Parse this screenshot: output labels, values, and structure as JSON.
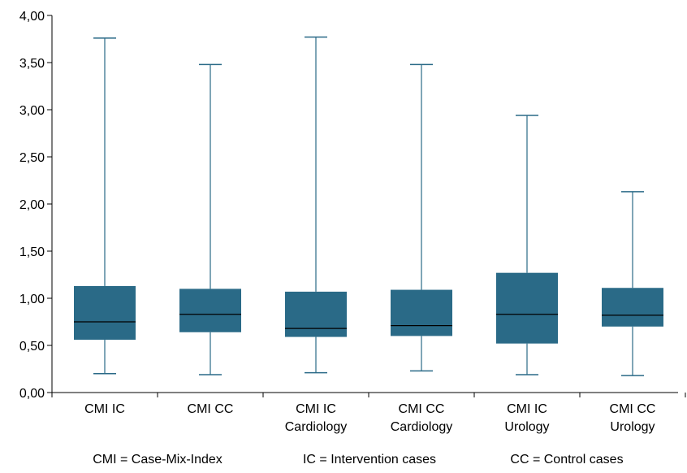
{
  "chart_data": {
    "type": "boxplot",
    "title": "",
    "xlabel": "",
    "ylabel": "",
    "ylim": [
      0,
      4
    ],
    "yticks": [
      "0,00",
      "0,50",
      "1,00",
      "1,50",
      "2,00",
      "2,50",
      "3,00",
      "3,50",
      "4,00"
    ],
    "ytick_values": [
      0,
      0.5,
      1,
      1.5,
      2,
      2.5,
      3,
      3.5,
      4
    ],
    "grid": false,
    "box_color": "#2a6a87",
    "categories": [
      {
        "line1": "CMI IC",
        "line2": ""
      },
      {
        "line1": "CMI CC",
        "line2": ""
      },
      {
        "line1": "CMI IC",
        "line2": "Cardiology"
      },
      {
        "line1": "CMI CC",
        "line2": "Cardiology"
      },
      {
        "line1": "CMI IC",
        "line2": "Urology"
      },
      {
        "line1": "CMI CC",
        "line2": "Urology"
      }
    ],
    "boxes": [
      {
        "min": 0.2,
        "q1": 0.56,
        "median": 0.75,
        "q3": 1.13,
        "max": 3.76
      },
      {
        "min": 0.19,
        "q1": 0.64,
        "median": 0.83,
        "q3": 1.1,
        "max": 3.48
      },
      {
        "min": 0.21,
        "q1": 0.59,
        "median": 0.68,
        "q3": 1.07,
        "max": 3.77
      },
      {
        "min": 0.23,
        "q1": 0.6,
        "median": 0.71,
        "q3": 1.09,
        "max": 3.48
      },
      {
        "min": 0.19,
        "q1": 0.52,
        "median": 0.83,
        "q3": 1.27,
        "max": 2.94
      },
      {
        "min": 0.18,
        "q1": 0.7,
        "median": 0.82,
        "q3": 1.11,
        "max": 2.13
      }
    ],
    "legend": [
      "CMI = Case-Mix-Index",
      "IC = Intervention cases",
      "CC = Control cases"
    ]
  }
}
